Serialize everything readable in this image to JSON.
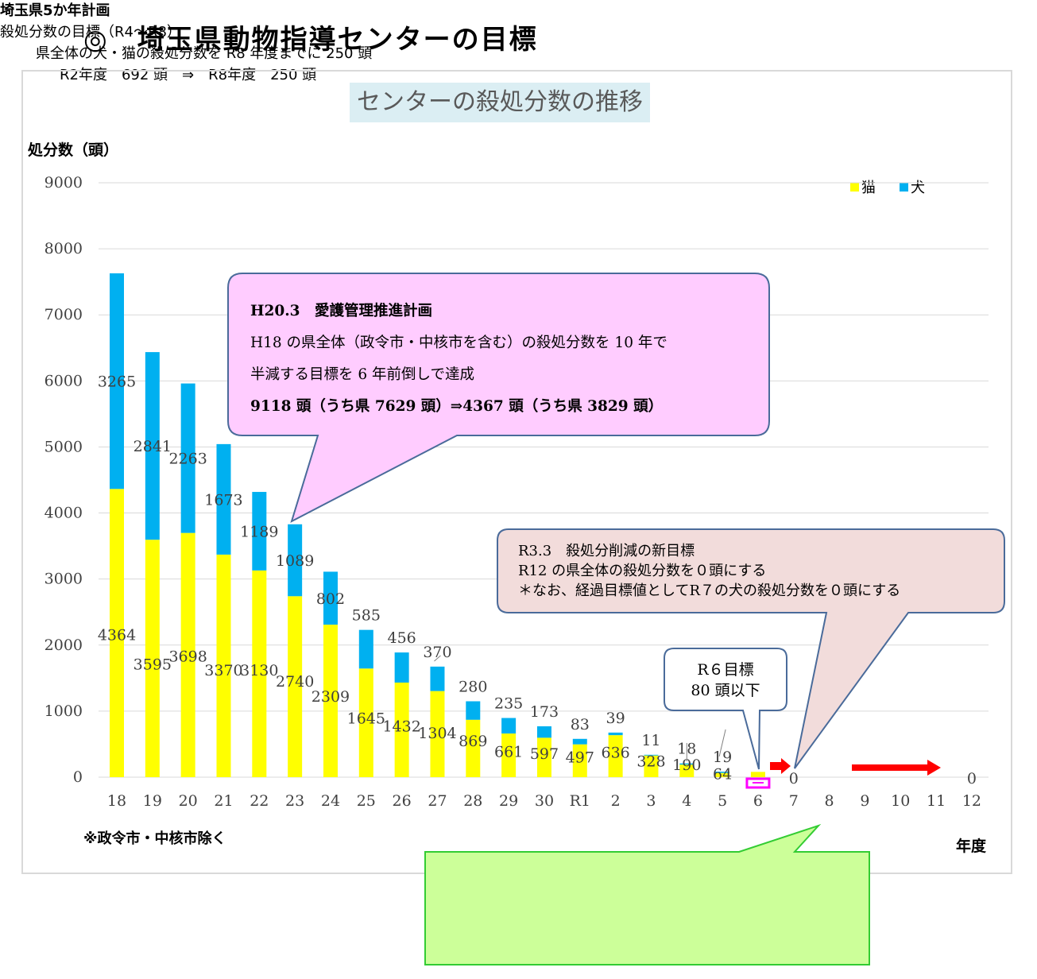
{
  "page": {
    "title": "◎　埼玉県動物指導センターの目標"
  },
  "colors": {
    "cat": "#ffff00",
    "dog": "#00b0f0",
    "arrow": "#ff0000",
    "target_box": "#ff00ff",
    "callout1_fill": "#ffccff",
    "callout2_fill": "#f2dcdb",
    "callout3_fill": "#ffffff",
    "callout4_fill": "#ccff99",
    "callout4_border": "#33cc33",
    "callout_border": "#4a6b9a"
  },
  "chart_data": {
    "type": "bar",
    "stacked": true,
    "title": "センターの殺処分数の推移",
    "ylabel": "処分数（頭）",
    "xlabel": "年度",
    "ylim": [
      0,
      9000
    ],
    "yticks": [
      0,
      1000,
      2000,
      3000,
      4000,
      5000,
      6000,
      7000,
      8000,
      9000
    ],
    "grid": true,
    "legend_position": "top-right",
    "categories": [
      "18",
      "19",
      "20",
      "21",
      "22",
      "23",
      "24",
      "25",
      "26",
      "27",
      "28",
      "29",
      "30",
      "R1",
      "2",
      "3",
      "4",
      "5",
      "6",
      "7",
      "8",
      "9",
      "10",
      "11",
      "12"
    ],
    "series": [
      {
        "name": "猫",
        "values": [
          4364,
          3595,
          3698,
          3370,
          3130,
          2740,
          2309,
          1645,
          1432,
          1304,
          869,
          661,
          597,
          497,
          636,
          328,
          190,
          64,
          null,
          null,
          null,
          null,
          null,
          null,
          null
        ]
      },
      {
        "name": "犬",
        "values": [
          3265,
          2841,
          2263,
          1673,
          1189,
          1089,
          802,
          585,
          456,
          370,
          280,
          235,
          173,
          83,
          39,
          11,
          18,
          19,
          null,
          null,
          null,
          null,
          null,
          null,
          null
        ]
      }
    ],
    "zero_labels": {
      "7": "0",
      "12": "0"
    },
    "note": "※政令市・中核市除く"
  },
  "callouts": {
    "plan_h20": {
      "lines": [
        "H20.3　愛護管理推進計画",
        "H18 の県全体（政令市・中核市を含む）の殺処分数を 10 年で",
        "半減する目標を 6 年前倒しで達成",
        "9118 頭（うち県 7629 頭）⇒4367 頭（うち県 3829 頭）"
      ]
    },
    "target_r3": {
      "lines": [
        "R3.3　殺処分削減の新目標",
        "R12 の県全体の殺処分数を０頭にする",
        "＊なお、経過目標値としてR７の犬の殺処分数を０頭にする"
      ]
    },
    "target_r6": {
      "lines": [
        "R６目標",
        "80 頭以下"
      ]
    },
    "five_year_plan": {
      "lines": [
        "埼玉県5か年計画",
        "殺処分数の目標（R4～R8）",
        "県全体の犬・猫の殺処分数を R8 年度までに 250 頭",
        "R2年度　692 頭　⇒　R8年度　250 頭"
      ]
    }
  }
}
